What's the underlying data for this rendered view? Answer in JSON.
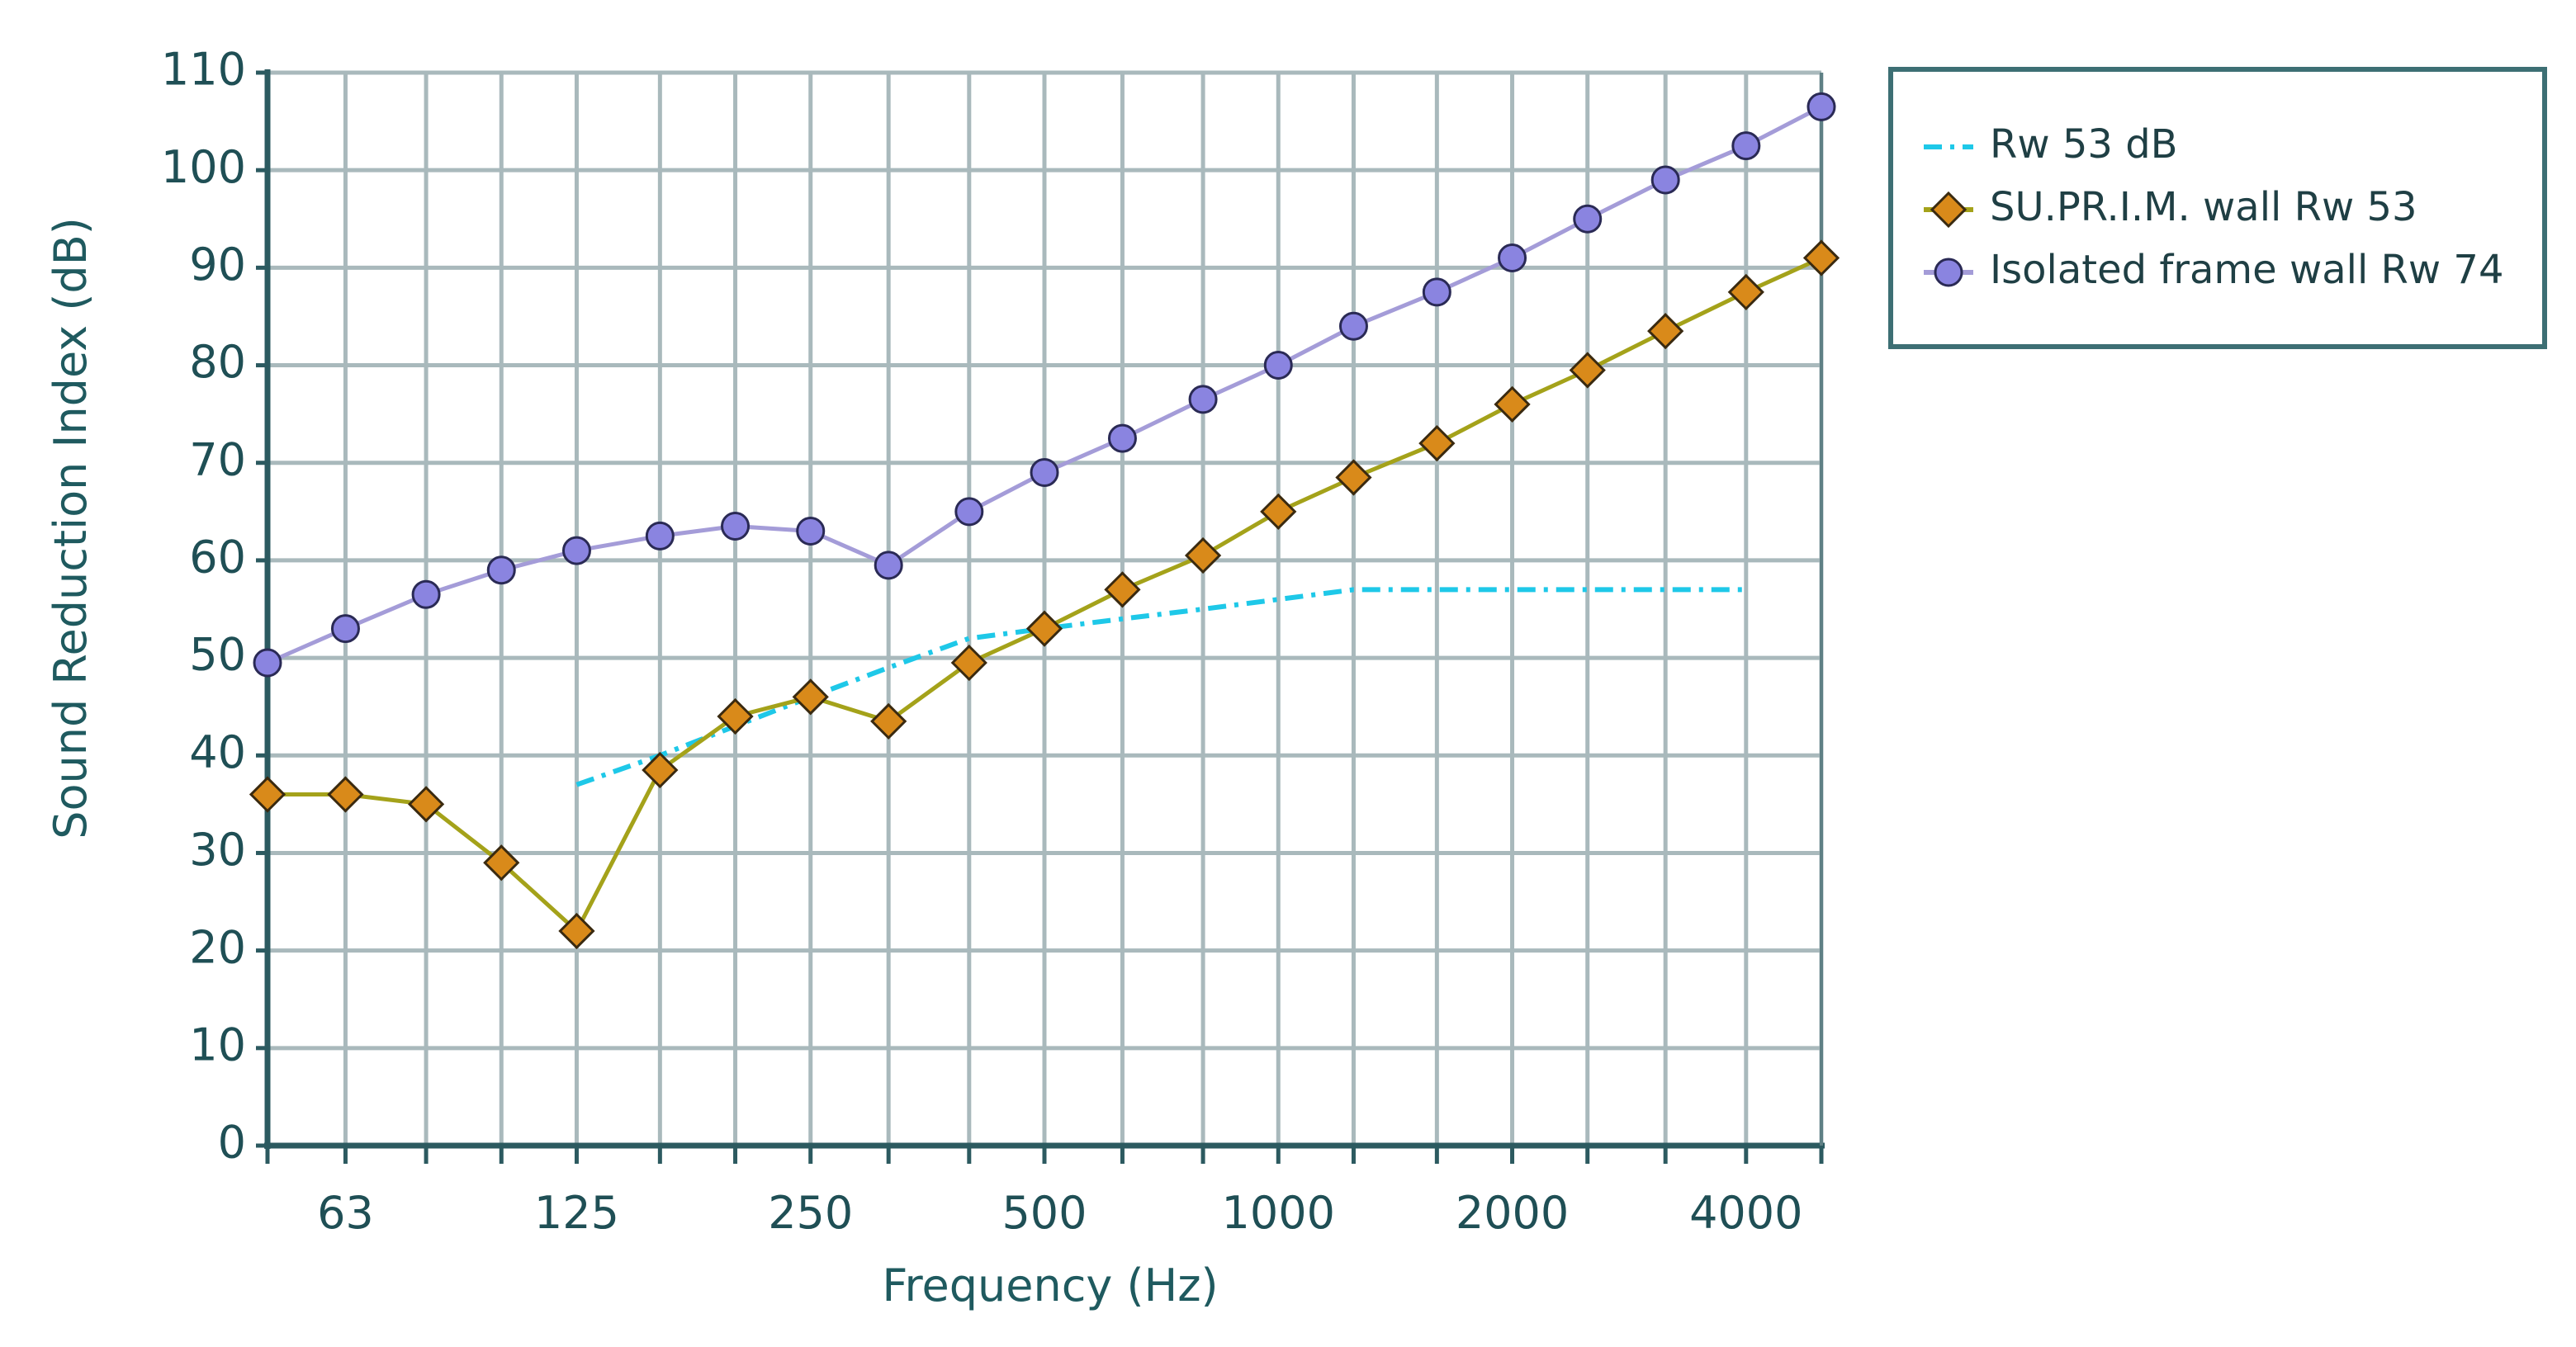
{
  "chart_data": {
    "type": "line",
    "title": "",
    "xlabel": "Frequency (Hz)",
    "ylabel": "Sound Reduction Index (dB)",
    "x_scale": "log",
    "x": [
      50,
      63,
      80,
      100,
      125,
      160,
      200,
      250,
      315,
      400,
      500,
      630,
      800,
      1000,
      1250,
      1600,
      2000,
      2500,
      3150,
      4000,
      5000
    ],
    "xlim": [
      50,
      5000
    ],
    "ylim": [
      0,
      110
    ],
    "yticks": [
      0,
      10,
      20,
      30,
      40,
      50,
      60,
      70,
      80,
      90,
      100,
      110
    ],
    "xtick_labels": [
      "63",
      "125",
      "250",
      "500",
      "1000",
      "2000",
      "4000"
    ],
    "grid": true,
    "legend_position": "outside-right-top",
    "series": [
      {
        "name": "Rw 53 dB",
        "style": "dash-dot",
        "marker": "none",
        "color": "#1ec8e8",
        "x": [
          125,
          160,
          200,
          250,
          315,
          400,
          500,
          630,
          800,
          1000,
          1250,
          1600,
          2000,
          2500,
          3150,
          4000
        ],
        "values": [
          37,
          40,
          43,
          46,
          49,
          52,
          53,
          54,
          55,
          56,
          57,
          57,
          57,
          57,
          57,
          57
        ]
      },
      {
        "name": "SU.PR.I.M. wall Rw 53",
        "style": "solid",
        "marker": "diamond",
        "color": "#a4a21a",
        "marker_color": "#d98a1a",
        "x": [
          50,
          63,
          80,
          100,
          125,
          160,
          200,
          250,
          315,
          400,
          500,
          630,
          800,
          1000,
          1250,
          1600,
          2000,
          2500,
          3150,
          4000,
          5000
        ],
        "values": [
          36,
          36,
          35,
          29,
          22,
          38.5,
          44,
          46,
          43.5,
          49.5,
          53,
          57,
          60.5,
          65,
          68.5,
          72,
          76,
          79.5,
          83.5,
          87.5,
          91
        ]
      },
      {
        "name": "Isolated frame wall Rw 74",
        "style": "solid",
        "marker": "circle",
        "color": "#a49cd8",
        "marker_color": "#8a84e0",
        "x": [
          50,
          63,
          80,
          100,
          125,
          160,
          200,
          250,
          315,
          400,
          500,
          630,
          800,
          1000,
          1250,
          1600,
          2000,
          2500,
          3150,
          4000,
          5000
        ],
        "values": [
          49.5,
          53,
          56.5,
          59,
          61,
          62.5,
          63.5,
          63,
          59.5,
          65,
          69,
          72.5,
          76.5,
          80,
          84,
          87.5,
          91,
          95,
          99,
          102.5,
          106.5
        ]
      }
    ]
  }
}
